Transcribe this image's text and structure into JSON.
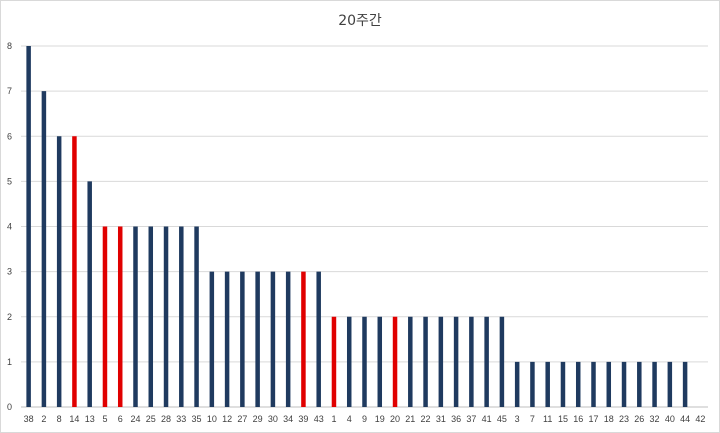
{
  "chart_data": {
    "type": "bar",
    "title": "20주간",
    "xlabel": "",
    "ylabel": "",
    "ylim": [
      0,
      8
    ],
    "yticks": [
      0,
      1,
      2,
      3,
      4,
      5,
      6,
      7,
      8
    ],
    "grid": true,
    "legend": "none",
    "categories": [
      "38",
      "2",
      "8",
      "14",
      "13",
      "5",
      "6",
      "24",
      "25",
      "28",
      "33",
      "35",
      "10",
      "12",
      "27",
      "29",
      "30",
      "34",
      "39",
      "43",
      "1",
      "4",
      "9",
      "19",
      "20",
      "21",
      "22",
      "31",
      "36",
      "37",
      "41",
      "45",
      "3",
      "7",
      "11",
      "15",
      "16",
      "17",
      "18",
      "23",
      "26",
      "32",
      "40",
      "44",
      "42"
    ],
    "values": [
      8,
      7,
      6,
      6,
      5,
      4,
      4,
      4,
      4,
      4,
      4,
      4,
      3,
      3,
      3,
      3,
      3,
      3,
      3,
      3,
      2,
      2,
      2,
      2,
      2,
      2,
      2,
      2,
      2,
      2,
      2,
      2,
      1,
      1,
      1,
      1,
      1,
      1,
      1,
      1,
      1,
      1,
      1,
      1,
      0
    ],
    "highlighted": [
      "14",
      "5",
      "6",
      "39",
      "1",
      "20"
    ],
    "colors": {
      "default": "#1f3a5f",
      "highlight": "#e00000",
      "grid": "#d9d9d9",
      "axis": "#bfbfbf"
    }
  }
}
